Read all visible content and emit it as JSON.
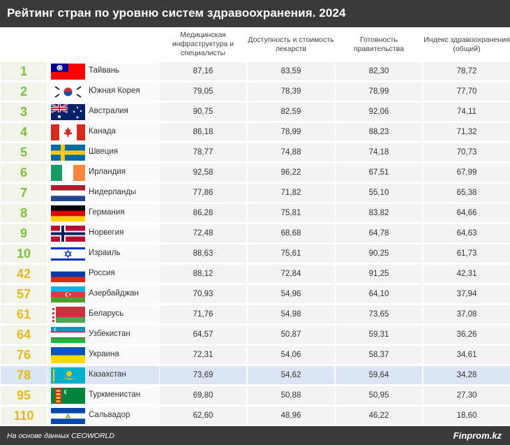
{
  "title": "Рейтинг стран по уровню систем здравоохранения. 2024",
  "columns": [
    "Медицинская инфраструктура и специалисты",
    "Доступность и стоимость лекарств",
    "Готовность правительства",
    "Индекс здравоохранения (общий)"
  ],
  "highlight_color": "#dbe5f3",
  "rank_colors": {
    "top": "#7fbf3f",
    "other": "#e6b820"
  },
  "rows": [
    {
      "rank": "1",
      "country": "Тайвань",
      "flag": "taiwan-flag-icon",
      "v1": "87,16",
      "v2": "83,59",
      "v3": "82,30",
      "v4": "78,72"
    },
    {
      "rank": "2",
      "country": "Южная Корея",
      "flag": "south-korea-flag-icon",
      "v1": "79,05",
      "v2": "78,39",
      "v3": "78,99",
      "v4": "77,70"
    },
    {
      "rank": "3",
      "country": "Австралия",
      "flag": "australia-flag-icon",
      "v1": "90,75",
      "v2": "82,59",
      "v3": "92,06",
      "v4": "74,11"
    },
    {
      "rank": "4",
      "country": "Канада",
      "flag": "canada-flag-icon",
      "v1": "86,18",
      "v2": "78,99",
      "v3": "88,23",
      "v4": "71,32"
    },
    {
      "rank": "5",
      "country": "Швеция",
      "flag": "sweden-flag-icon",
      "v1": "78,77",
      "v2": "74,88",
      "v3": "74,18",
      "v4": "70,73"
    },
    {
      "rank": "6",
      "country": "Ирландия",
      "flag": "ireland-flag-icon",
      "v1": "92,58",
      "v2": "96,22",
      "v3": "67,51",
      "v4": "67,99"
    },
    {
      "rank": "7",
      "country": "Нидерланды",
      "flag": "netherlands-flag-icon",
      "v1": "77,86",
      "v2": "71,82",
      "v3": "55,10",
      "v4": "65,38"
    },
    {
      "rank": "8",
      "country": "Германия",
      "flag": "germany-flag-icon",
      "v1": "86,28",
      "v2": "75,81",
      "v3": "83,82",
      "v4": "64,66"
    },
    {
      "rank": "9",
      "country": "Норвегия",
      "flag": "norway-flag-icon",
      "v1": "72,48",
      "v2": "68,68",
      "v3": "64,78",
      "v4": "64,63"
    },
    {
      "rank": "10",
      "country": "Израиль",
      "flag": "israel-flag-icon",
      "v1": "88,63",
      "v2": "75,61",
      "v3": "90,25",
      "v4": "61,73"
    },
    {
      "rank": "42",
      "country": "Россия",
      "flag": "russia-flag-icon",
      "v1": "88,12",
      "v2": "72,84",
      "v3": "91,25",
      "v4": "42,31"
    },
    {
      "rank": "57",
      "country": "Азербайджан",
      "flag": "azerbaijan-flag-icon",
      "v1": "70,93",
      "v2": "54,96",
      "v3": "64,10",
      "v4": "37,94"
    },
    {
      "rank": "61",
      "country": "Беларусь",
      "flag": "belarus-flag-icon",
      "v1": "71,76",
      "v2": "54,98",
      "v3": "73,65",
      "v4": "37,08"
    },
    {
      "rank": "64",
      "country": "Узбекистан",
      "flag": "uzbekistan-flag-icon",
      "v1": "64,57",
      "v2": "50,87",
      "v3": "59,31",
      "v4": "36,26"
    },
    {
      "rank": "76",
      "country": "Украина",
      "flag": "ukraine-flag-icon",
      "v1": "72,31",
      "v2": "54,06",
      "v3": "58,37",
      "v4": "34,61"
    },
    {
      "rank": "78",
      "country": "Казахстан",
      "flag": "kazakhstan-flag-icon",
      "v1": "73,69",
      "v2": "54,62",
      "v3": "59,64",
      "v4": "34,28",
      "highlight": true
    },
    {
      "rank": "95",
      "country": "Туркменистан",
      "flag": "turkmenistan-flag-icon",
      "v1": "69,80",
      "v2": "50,88",
      "v3": "50,95",
      "v4": "27,30"
    },
    {
      "rank": "110",
      "country": "Сальвадор",
      "flag": "el-salvador-flag-icon",
      "v1": "62,60",
      "v2": "48,96",
      "v3": "46,22",
      "v4": "18,60"
    }
  ],
  "footer": {
    "source": "На основе данных CEOWORLD",
    "brand": "Finprom.kz"
  }
}
